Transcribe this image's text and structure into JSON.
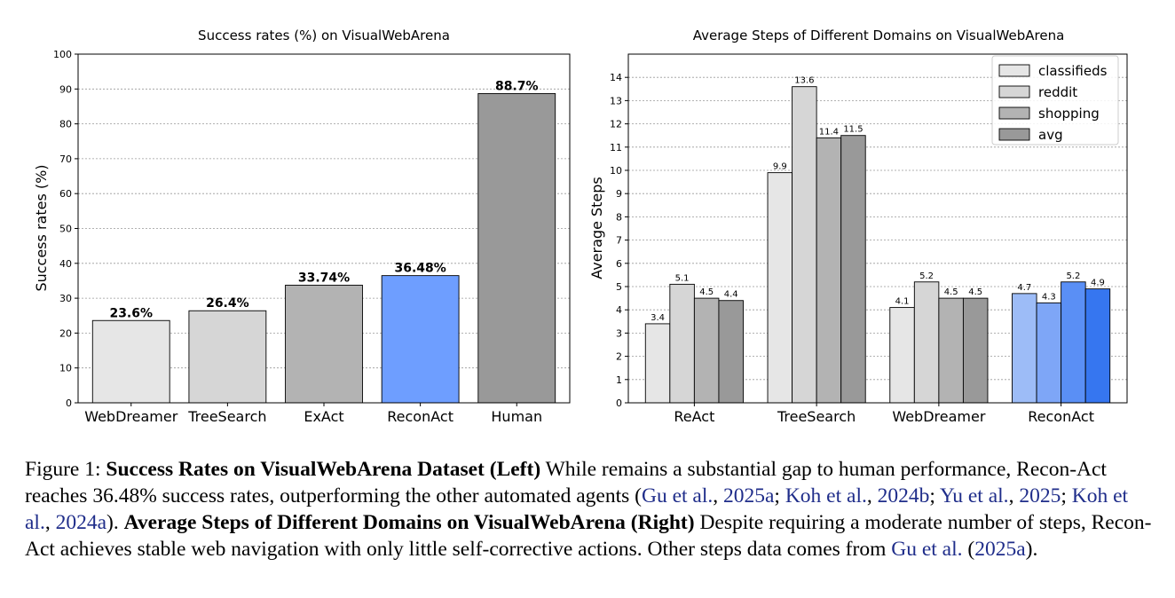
{
  "chart_data": [
    {
      "type": "bar",
      "title": "Success rates (%) on VisualWebArena",
      "xlabel": "",
      "ylabel": "Success rates (%)",
      "ylim": [
        0,
        100
      ],
      "yticks": [
        0,
        10,
        20,
        30,
        40,
        50,
        60,
        70,
        80,
        90,
        100
      ],
      "grid": "y-dashed",
      "categories": [
        "WebDreamer",
        "TreeSearch",
        "ExAct",
        "ReconAct",
        "Human"
      ],
      "values": [
        23.6,
        26.4,
        33.74,
        36.48,
        88.7
      ],
      "value_labels": [
        "23.6%",
        "26.4%",
        "33.74%",
        "36.48%",
        "88.7%"
      ],
      "colors": [
        "#e6e6e6",
        "#d6d6d6",
        "#b3b3b3",
        "#6e9eff",
        "#999999"
      ]
    },
    {
      "type": "bar",
      "title": "Average Steps of Different Domains on VisualWebArena",
      "xlabel": "",
      "ylabel": "Average Steps",
      "ylim": [
        0,
        15
      ],
      "yticks": [
        0,
        1,
        2,
        3,
        4,
        5,
        6,
        7,
        8,
        9,
        10,
        11,
        12,
        13,
        14
      ],
      "grid": "y-dashed",
      "legend_position": "top-right",
      "categories": [
        "ReAct",
        "TreeSearch",
        "WebDreamer",
        "ReconAct"
      ],
      "series": [
        {
          "name": "classifieds",
          "values": [
            3.4,
            9.9,
            4.1,
            4.7
          ]
        },
        {
          "name": "reddit",
          "values": [
            5.1,
            13.6,
            5.2,
            4.3
          ]
        },
        {
          "name": "shopping",
          "values": [
            4.5,
            11.4,
            4.5,
            5.2
          ]
        },
        {
          "name": "avg",
          "values": [
            4.4,
            11.5,
            4.5,
            4.9
          ]
        }
      ],
      "series_colors": [
        "#e6e6e6",
        "#d6d6d6",
        "#b3b3b3",
        "#999999"
      ],
      "highlight_category": "ReconAct",
      "highlight_colors": [
        "#9dbcf7",
        "#7ea6f7",
        "#5a8ff5",
        "#3676f0"
      ]
    }
  ],
  "caption": {
    "label": "Figure 1:",
    "bold1": "Success Rates on VisualWebArena Dataset (Left)",
    "text1": "While remains a substantial gap to human performance, Recon-Act reaches 36.48% success rates, outperforming the other automated agents (",
    "cite1_name": "Gu et al.",
    "cite1_year": "2025a",
    "cite2_name": "Koh et al.",
    "cite2_year": "2024b",
    "cite3_name": "Yu et al.",
    "cite3_year": "2025",
    "cite4_name": "Koh et al.",
    "cite4_year": "2024a",
    "text2": ").",
    "bold2": "Average Steps of Different Domains on VisualWebArena (Right)",
    "text3": "Despite requiring a moderate number of steps, Recon-Act achieves stable web navigation with only little self-corrective actions. Other steps data comes from",
    "cite5_name": "Gu et al.",
    "cite5_year": "2025a",
    "text4": ")."
  }
}
